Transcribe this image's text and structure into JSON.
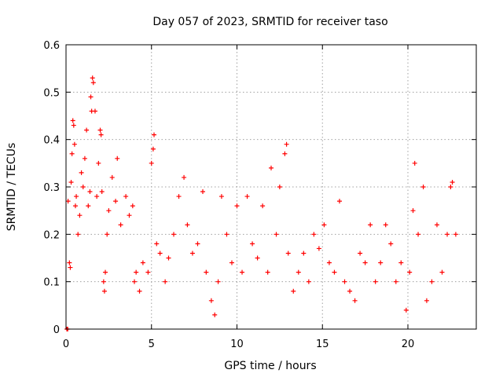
{
  "chart_data": {
    "type": "scatter",
    "title": "Day 057 of 2023, SRMTID for receiver taso",
    "xlabel": "GPS time / hours",
    "ylabel": "SRMTID / TECUs",
    "xlim": [
      0,
      24
    ],
    "ylim": [
      0,
      0.6
    ],
    "xticks": [
      "0",
      "5",
      "10",
      "15",
      "20"
    ],
    "yticks": [
      "0",
      "0.1",
      "0.2",
      "0.3",
      "0.4",
      "0.5",
      "0.6"
    ],
    "grid": true,
    "marker": "+",
    "color": "#ff0000",
    "series": [
      {
        "name": "SRMTID",
        "points": [
          [
            0.05,
            0.0
          ],
          [
            0.1,
            0.0
          ],
          [
            0.12,
            0.27
          ],
          [
            0.2,
            0.14
          ],
          [
            0.25,
            0.13
          ],
          [
            0.3,
            0.31
          ],
          [
            0.35,
            0.37
          ],
          [
            0.4,
            0.44
          ],
          [
            0.45,
            0.43
          ],
          [
            0.5,
            0.39
          ],
          [
            0.55,
            0.26
          ],
          [
            0.6,
            0.28
          ],
          [
            0.7,
            0.2
          ],
          [
            0.8,
            0.24
          ],
          [
            0.9,
            0.33
          ],
          [
            1.0,
            0.3
          ],
          [
            1.1,
            0.36
          ],
          [
            1.2,
            0.42
          ],
          [
            1.3,
            0.26
          ],
          [
            1.4,
            0.29
          ],
          [
            1.45,
            0.49
          ],
          [
            1.5,
            0.46
          ],
          [
            1.55,
            0.53
          ],
          [
            1.6,
            0.52
          ],
          [
            1.7,
            0.46
          ],
          [
            1.8,
            0.28
          ],
          [
            1.9,
            0.35
          ],
          [
            2.0,
            0.42
          ],
          [
            2.05,
            0.41
          ],
          [
            2.1,
            0.29
          ],
          [
            2.2,
            0.1
          ],
          [
            2.25,
            0.08
          ],
          [
            2.3,
            0.12
          ],
          [
            2.4,
            0.2
          ],
          [
            2.5,
            0.25
          ],
          [
            2.7,
            0.32
          ],
          [
            2.9,
            0.27
          ],
          [
            3.0,
            0.36
          ],
          [
            3.2,
            0.22
          ],
          [
            3.5,
            0.28
          ],
          [
            3.7,
            0.24
          ],
          [
            3.9,
            0.26
          ],
          [
            4.0,
            0.1
          ],
          [
            4.1,
            0.12
          ],
          [
            4.3,
            0.08
          ],
          [
            4.5,
            0.14
          ],
          [
            4.8,
            0.12
          ],
          [
            5.0,
            0.35
          ],
          [
            5.1,
            0.38
          ],
          [
            5.15,
            0.41
          ],
          [
            5.3,
            0.18
          ],
          [
            5.5,
            0.16
          ],
          [
            5.8,
            0.1
          ],
          [
            6.0,
            0.15
          ],
          [
            6.3,
            0.2
          ],
          [
            6.6,
            0.28
          ],
          [
            6.9,
            0.32
          ],
          [
            7.1,
            0.22
          ],
          [
            7.4,
            0.16
          ],
          [
            7.7,
            0.18
          ],
          [
            8.0,
            0.29
          ],
          [
            8.2,
            0.12
          ],
          [
            8.5,
            0.06
          ],
          [
            8.7,
            0.03
          ],
          [
            8.9,
            0.1
          ],
          [
            9.1,
            0.28
          ],
          [
            9.4,
            0.2
          ],
          [
            9.7,
            0.14
          ],
          [
            10.0,
            0.26
          ],
          [
            10.3,
            0.12
          ],
          [
            10.6,
            0.28
          ],
          [
            10.9,
            0.18
          ],
          [
            11.2,
            0.15
          ],
          [
            11.5,
            0.26
          ],
          [
            11.8,
            0.12
          ],
          [
            12.0,
            0.34
          ],
          [
            12.3,
            0.2
          ],
          [
            12.5,
            0.3
          ],
          [
            12.8,
            0.37
          ],
          [
            12.9,
            0.39
          ],
          [
            13.0,
            0.16
          ],
          [
            13.3,
            0.08
          ],
          [
            13.6,
            0.12
          ],
          [
            13.9,
            0.16
          ],
          [
            14.2,
            0.1
          ],
          [
            14.5,
            0.2
          ],
          [
            14.8,
            0.17
          ],
          [
            15.1,
            0.22
          ],
          [
            15.4,
            0.14
          ],
          [
            15.7,
            0.12
          ],
          [
            16.0,
            0.27
          ],
          [
            16.3,
            0.1
          ],
          [
            16.6,
            0.08
          ],
          [
            16.9,
            0.06
          ],
          [
            17.2,
            0.16
          ],
          [
            17.5,
            0.14
          ],
          [
            17.8,
            0.22
          ],
          [
            18.1,
            0.1
          ],
          [
            18.4,
            0.14
          ],
          [
            18.7,
            0.22
          ],
          [
            19.0,
            0.18
          ],
          [
            19.3,
            0.1
          ],
          [
            19.6,
            0.14
          ],
          [
            19.9,
            0.04
          ],
          [
            20.1,
            0.12
          ],
          [
            20.3,
            0.25
          ],
          [
            20.4,
            0.35
          ],
          [
            20.6,
            0.2
          ],
          [
            20.9,
            0.3
          ],
          [
            21.1,
            0.06
          ],
          [
            21.4,
            0.1
          ],
          [
            21.7,
            0.22
          ],
          [
            22.0,
            0.12
          ],
          [
            22.3,
            0.2
          ],
          [
            22.5,
            0.3
          ],
          [
            22.6,
            0.31
          ],
          [
            22.8,
            0.2
          ]
        ]
      }
    ]
  }
}
